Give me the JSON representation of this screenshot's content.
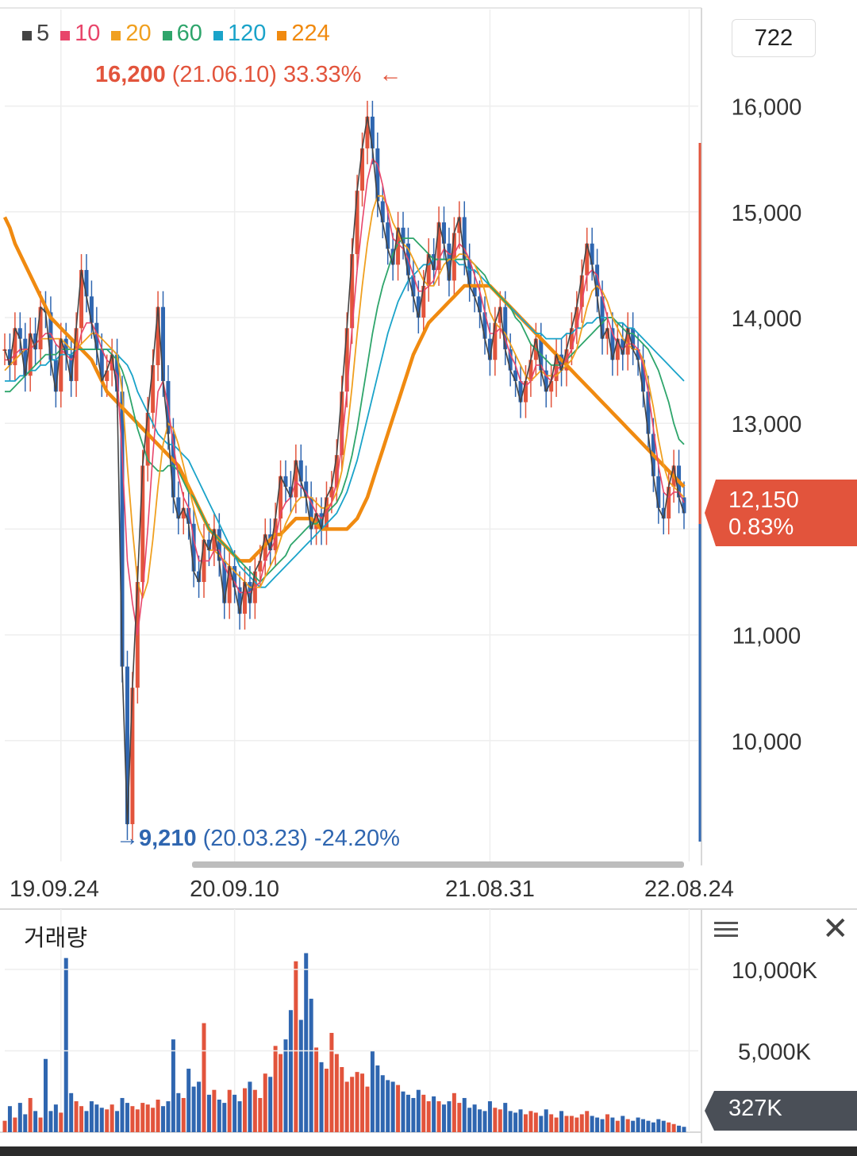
{
  "legend": [
    {
      "label": "5",
      "color": "#444444"
    },
    {
      "label": "10",
      "color": "#e8456a"
    },
    {
      "label": "20",
      "color": "#f0a020"
    },
    {
      "label": "60",
      "color": "#2ea56b"
    },
    {
      "label": "120",
      "color": "#1aa3c9"
    },
    {
      "label": "224",
      "color": "#f08a10"
    }
  ],
  "high_annotation": {
    "price": "16,200",
    "date": "(21.06.10)",
    "pct": "33.33%",
    "arrow": "←"
  },
  "low_annotation": {
    "arrow": "→",
    "price": "9,210",
    "date": "(20.03.23)",
    "pct": "-24.20%"
  },
  "period_box": "722",
  "current": {
    "price": "12,150",
    "change": "0.83%"
  },
  "volume": {
    "title": "거래량",
    "current": "327K"
  },
  "colors": {
    "up": "#e2543c",
    "down": "#2f66b0",
    "ma224": "#f08a10",
    "ma60": "#2ea56b",
    "ma120": "#1aa3c9",
    "ma20": "#f0a020",
    "ma10": "#e8456a"
  },
  "chart_data": [
    {
      "type": "line",
      "title": "",
      "ylim": [
        9000,
        16500
      ],
      "y_ticks": [
        "16,000",
        "15,000",
        "14,000",
        "13,000",
        "12,000",
        "11,000",
        "10,000"
      ],
      "y_tick_values": [
        16000,
        15000,
        14000,
        13000,
        12000,
        11000,
        10000
      ],
      "x_ticks": [
        "19.09.24",
        "20.09.10",
        "21.08.31",
        "22.08.24"
      ],
      "x_tick_index": [
        11,
        45,
        95,
        134
      ],
      "high": {
        "value": 16200,
        "date": "21.06.10"
      },
      "low": {
        "value": 9210,
        "date": "20.03.23"
      },
      "series": [
        {
          "name": "5",
          "values": [
            13700,
            13550,
            13900,
            13800,
            13450,
            13850,
            13700,
            14100,
            14050,
            13600,
            13300,
            13800,
            13650,
            13400,
            13900,
            14450,
            14200,
            13950,
            13700,
            13400,
            13500,
            13650,
            13300,
            10700,
            9210,
            10500,
            11500,
            12600,
            13100,
            13550,
            14100,
            13400,
            12900,
            12300,
            12100,
            12200,
            12050,
            11600,
            11500,
            11900,
            11800,
            12000,
            11700,
            11300,
            11650,
            11450,
            11200,
            11500,
            11300,
            11600,
            11700,
            11950,
            11800,
            12100,
            12500,
            12400,
            12300,
            12650,
            12450,
            12300,
            12000,
            12150,
            12000,
            12300,
            12400,
            12700,
            13300,
            13900,
            14600,
            15200,
            15600,
            15900,
            15600,
            15100,
            14900,
            14650,
            14500,
            14850,
            14700,
            14400,
            14200,
            14000,
            14300,
            14600,
            14450,
            14900,
            14700,
            14350,
            14800,
            14950,
            14550,
            14300,
            14200,
            14050,
            13800,
            13600,
            13950,
            14100,
            13700,
            13500,
            13400,
            13200,
            13400,
            13600,
            13800,
            13500,
            13300,
            13400,
            13650,
            13500,
            13700,
            13900,
            14100,
            14400,
            14700,
            14500,
            14200,
            13800,
            13900,
            13600,
            13800,
            13650,
            13900,
            13700,
            13600,
            13300,
            12900,
            12500,
            12200,
            12100,
            12400,
            12600,
            12300,
            12150
          ]
        },
        {
          "name": "10",
          "values": [
            13600,
            13600,
            13650,
            13700,
            13700,
            13700,
            13750,
            13800,
            13850,
            13850,
            13750,
            13700,
            13650,
            13600,
            13650,
            13850,
            13950,
            13950,
            13850,
            13700,
            13600,
            13550,
            13450,
            12700,
            11700,
            11300,
            11000,
            11400,
            12000,
            12700,
            13300,
            13400,
            13150,
            12800,
            12500,
            12300,
            12200,
            11900,
            11700,
            11700,
            11700,
            11800,
            11800,
            11650,
            11550,
            11500,
            11400,
            11400,
            11400,
            11450,
            11500,
            11700,
            11800,
            11900,
            12150,
            12250,
            12300,
            12450,
            12400,
            12350,
            12250,
            12150,
            12100,
            12150,
            12250,
            12450,
            12800,
            13300,
            13900,
            14450,
            14900,
            15300,
            15500,
            15450,
            15250,
            15000,
            14750,
            14700,
            14650,
            14550,
            14400,
            14250,
            14250,
            14300,
            14350,
            14550,
            14650,
            14600,
            14600,
            14700,
            14650,
            14550,
            14400,
            14250,
            14050,
            13850,
            13850,
            13900,
            13800,
            13650,
            13550,
            13400,
            13350,
            13400,
            13550,
            13550,
            13450,
            13400,
            13500,
            13550,
            13600,
            13700,
            13900,
            14150,
            14400,
            14450,
            14400,
            14200,
            14000,
            13850,
            13750,
            13700,
            13750,
            13750,
            13700,
            13550,
            13300,
            12950,
            12600,
            12350,
            12300,
            12350,
            12350,
            12250
          ]
        },
        {
          "name": "20",
          "values": [
            13500,
            13550,
            13600,
            13650,
            13700,
            13700,
            13750,
            13800,
            13800,
            13800,
            13800,
            13800,
            13750,
            13700,
            13700,
            13750,
            13800,
            13850,
            13850,
            13800,
            13750,
            13700,
            13650,
            13300,
            12600,
            12000,
            11500,
            11350,
            11500,
            11900,
            12400,
            12800,
            13000,
            12950,
            12800,
            12600,
            12400,
            12200,
            12000,
            11900,
            11800,
            11800,
            11750,
            11700,
            11650,
            11600,
            11550,
            11500,
            11450,
            11450,
            11450,
            11550,
            11650,
            11750,
            11900,
            12050,
            12150,
            12250,
            12300,
            12300,
            12300,
            12250,
            12200,
            12200,
            12250,
            12350,
            12550,
            12900,
            13350,
            13850,
            14300,
            14700,
            15000,
            15150,
            15150,
            15050,
            14900,
            14800,
            14700,
            14650,
            14550,
            14450,
            14350,
            14300,
            14300,
            14400,
            14500,
            14550,
            14550,
            14600,
            14600,
            14550,
            14500,
            14400,
            14250,
            14050,
            13950,
            13900,
            13850,
            13750,
            13650,
            13550,
            13450,
            13400,
            13450,
            13500,
            13450,
            13450,
            13450,
            13500,
            13550,
            13600,
            13700,
            13900,
            14100,
            14250,
            14300,
            14250,
            14150,
            14000,
            13900,
            13800,
            13750,
            13700,
            13700,
            13600,
            13400,
            13150,
            12850,
            12600,
            12450,
            12400,
            12350,
            12300
          ]
        },
        {
          "name": "60",
          "values": [
            13300,
            13300,
            13350,
            13400,
            13450,
            13500,
            13550,
            13600,
            13650,
            13650,
            13650,
            13700,
            13700,
            13700,
            13700,
            13700,
            13700,
            13700,
            13700,
            13700,
            13700,
            13650,
            13600,
            13500,
            13350,
            13150,
            12950,
            12800,
            12650,
            12600,
            12550,
            12550,
            12600,
            12600,
            12550,
            12450,
            12350,
            12300,
            12200,
            12100,
            12000,
            11950,
            11900,
            11850,
            11800,
            11750,
            11700,
            11650,
            11600,
            11550,
            11500,
            11550,
            11600,
            11650,
            11700,
            11750,
            11850,
            11900,
            11950,
            12000,
            12050,
            12050,
            12100,
            12150,
            12200,
            12250,
            12350,
            12500,
            12700,
            12950,
            13250,
            13550,
            13850,
            14100,
            14300,
            14450,
            14600,
            14700,
            14750,
            14750,
            14750,
            14700,
            14650,
            14600,
            14550,
            14550,
            14550,
            14550,
            14550,
            14550,
            14550,
            14550,
            14500,
            14450,
            14400,
            14300,
            14250,
            14200,
            14150,
            14100,
            14000,
            13950,
            13850,
            13750,
            13700,
            13650,
            13600,
            13550,
            13550,
            13550,
            13600,
            13650,
            13700,
            13750,
            13800,
            13850,
            13900,
            13950,
            14000,
            14000,
            13950,
            13900,
            13850,
            13850,
            13800,
            13750,
            13700,
            13600,
            13500,
            13350,
            13200,
            13000,
            12850,
            12800
          ]
        },
        {
          "name": "120",
          "values": [
            13400,
            13400,
            13400,
            13450,
            13450,
            13500,
            13500,
            13550,
            13550,
            13600,
            13600,
            13650,
            13650,
            13650,
            13700,
            13700,
            13700,
            13700,
            13700,
            13700,
            13700,
            13700,
            13650,
            13600,
            13550,
            13450,
            13300,
            13200,
            13100,
            13000,
            12900,
            12850,
            12800,
            12800,
            12750,
            12700,
            12650,
            12550,
            12450,
            12350,
            12250,
            12150,
            12050,
            11950,
            11850,
            11750,
            11650,
            11600,
            11550,
            11500,
            11450,
            11450,
            11500,
            11550,
            11600,
            11650,
            11700,
            11750,
            11800,
            11850,
            11900,
            11950,
            12000,
            12050,
            12100,
            12150,
            12250,
            12350,
            12500,
            12650,
            12850,
            13050,
            13250,
            13450,
            13650,
            13850,
            14000,
            14150,
            14250,
            14350,
            14400,
            14450,
            14500,
            14500,
            14550,
            14550,
            14550,
            14550,
            14550,
            14500,
            14500,
            14450,
            14450,
            14400,
            14350,
            14300,
            14250,
            14200,
            14150,
            14100,
            14050,
            14000,
            13950,
            13900,
            13850,
            13850,
            13800,
            13800,
            13800,
            13800,
            13850,
            13850,
            13900,
            13900,
            13950,
            13950,
            14000,
            14000,
            14000,
            14000,
            13950,
            13950,
            13900,
            13900,
            13850,
            13800,
            13750,
            13700,
            13650,
            13600,
            13550,
            13500,
            13450,
            13400
          ]
        },
        {
          "name": "224",
          "values": [
            14950,
            14850,
            14700,
            14600,
            14500,
            14400,
            14300,
            14200,
            14100,
            14000,
            13950,
            13900,
            13850,
            13800,
            13750,
            13700,
            13650,
            13600,
            13500,
            13400,
            13300,
            13250,
            13200,
            13150,
            13100,
            13050,
            13000,
            12950,
            12900,
            12850,
            12800,
            12750,
            12700,
            12650,
            12600,
            12500,
            12400,
            12300,
            12200,
            12100,
            12000,
            11950,
            11900,
            11850,
            11800,
            11750,
            11700,
            11700,
            11700,
            11750,
            11800,
            11850,
            11900,
            11950,
            11950,
            12000,
            12050,
            12100,
            12100,
            12100,
            12100,
            12050,
            12000,
            12000,
            12000,
            12000,
            12000,
            12000,
            12050,
            12100,
            12200,
            12300,
            12450,
            12600,
            12750,
            12900,
            13050,
            13200,
            13350,
            13500,
            13650,
            13750,
            13850,
            13950,
            14000,
            14050,
            14100,
            14150,
            14200,
            14250,
            14300,
            14300,
            14300,
            14300,
            14300,
            14300,
            14250,
            14200,
            14150,
            14100,
            14050,
            14000,
            13950,
            13900,
            13850,
            13800,
            13750,
            13700,
            13650,
            13600,
            13550,
            13500,
            13450,
            13400,
            13350,
            13300,
            13250,
            13200,
            13150,
            13100,
            13050,
            13000,
            12950,
            12900,
            12850,
            12800,
            12750,
            12700,
            12650,
            12600,
            12550,
            12500,
            12450,
            12400
          ]
        }
      ],
      "volume_ylim": [
        0,
        12000
      ],
      "volume_ticks": [
        "10,000K",
        "5,000K"
      ],
      "volume_tick_values": [
        10000,
        5000
      ],
      "volume_values": [
        700,
        1600,
        900,
        1800,
        1100,
        2100,
        1300,
        900,
        4500,
        1300,
        1700,
        1200,
        10700,
        2400,
        1900,
        1600,
        1300,
        1900,
        1700,
        1500,
        1400,
        1700,
        1300,
        2100,
        1800,
        1600,
        1400,
        1800,
        1700,
        1500,
        2000,
        1600,
        1900,
        5700,
        2400,
        2100,
        3900,
        2800,
        3100,
        6700,
        2300,
        2600,
        2000,
        1800,
        2600,
        2300,
        1900,
        2700,
        3100,
        2600,
        2100,
        3600,
        3400,
        5300,
        4800,
        5700,
        7500,
        10500,
        6900,
        11000,
        8200,
        5200,
        4300,
        3900,
        6100,
        4800,
        4000,
        3100,
        3400,
        3700,
        3600,
        2800,
        5000,
        4100,
        3500,
        3200,
        3100,
        2900,
        2500,
        2300,
        2100,
        2600,
        2300,
        1900,
        2200,
        1900,
        1700,
        1900,
        2400,
        1800,
        2100,
        1500,
        1700,
        1400,
        1300,
        1900,
        1500,
        1400,
        1800,
        1300,
        1200,
        1400,
        1100,
        1300,
        1200,
        1000,
        1400,
        1100,
        900,
        1300,
        1000,
        1000,
        900,
        1100,
        1300,
        1000,
        900,
        800,
        1100,
        900,
        700,
        1000,
        800,
        700,
        900,
        800,
        700,
        600,
        800,
        700,
        600,
        500,
        400,
        330
      ]
    }
  ]
}
